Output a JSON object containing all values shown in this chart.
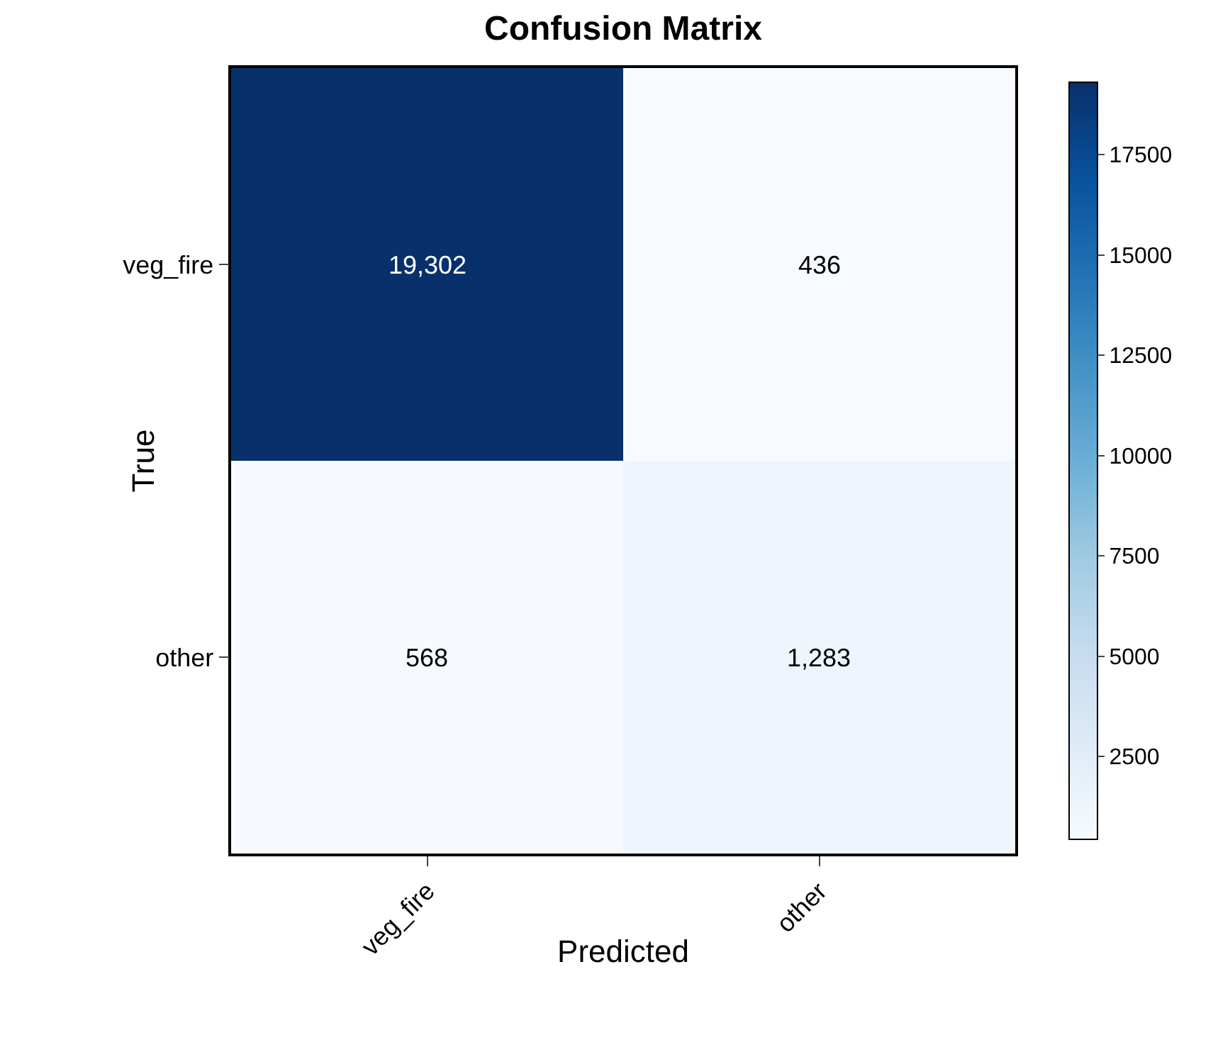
{
  "chart_data": {
    "type": "heatmap",
    "title": "Confusion Matrix",
    "xlabel": "Predicted",
    "ylabel": "True",
    "categories": [
      "veg_fire",
      "other"
    ],
    "y_categories": [
      "veg_fire",
      "other"
    ],
    "cells": [
      [
        19302,
        436
      ],
      [
        568,
        1283
      ]
    ],
    "cell_labels": [
      [
        "19,302",
        "436"
      ],
      [
        "568",
        "1,283"
      ]
    ],
    "clim": [
      436,
      19302
    ],
    "cticks": [
      2500,
      5000,
      7500,
      10000,
      12500,
      15000,
      17500
    ]
  }
}
